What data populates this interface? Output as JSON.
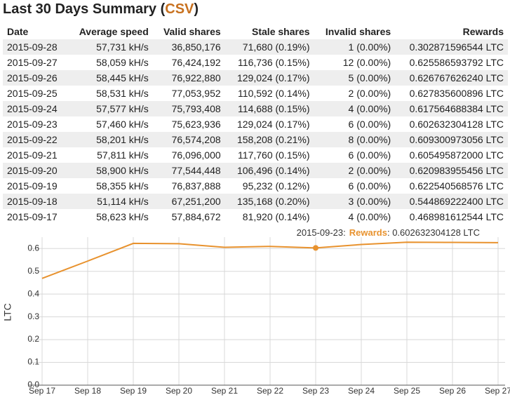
{
  "header": {
    "title": "Last 30 Days Summary",
    "open": "(",
    "link": "CSV",
    "close": ")"
  },
  "table": {
    "columns": [
      "Date",
      "Average speed",
      "Valid shares",
      "Stale shares",
      "Invalid shares",
      "Rewards"
    ],
    "rows": [
      [
        "2015-09-28",
        "57,731 kH/s",
        "36,850,176",
        "71,680 (0.19%)",
        "1 (0.00%)",
        "0.302871596544 LTC"
      ],
      [
        "2015-09-27",
        "58,059 kH/s",
        "76,424,192",
        "116,736 (0.15%)",
        "12 (0.00%)",
        "0.625586593792 LTC"
      ],
      [
        "2015-09-26",
        "58,445 kH/s",
        "76,922,880",
        "129,024 (0.17%)",
        "5 (0.00%)",
        "0.626767626240 LTC"
      ],
      [
        "2015-09-25",
        "58,531 kH/s",
        "77,053,952",
        "110,592 (0.14%)",
        "2 (0.00%)",
        "0.627835600896 LTC"
      ],
      [
        "2015-09-24",
        "57,577 kH/s",
        "75,793,408",
        "114,688 (0.15%)",
        "4 (0.00%)",
        "0.617564688384 LTC"
      ],
      [
        "2015-09-23",
        "57,460 kH/s",
        "75,623,936",
        "129,024 (0.17%)",
        "6 (0.00%)",
        "0.602632304128 LTC"
      ],
      [
        "2015-09-22",
        "58,201 kH/s",
        "76,574,208",
        "158,208 (0.21%)",
        "8 (0.00%)",
        "0.609300973056 LTC"
      ],
      [
        "2015-09-21",
        "57,811 kH/s",
        "76,096,000",
        "117,760 (0.15%)",
        "6 (0.00%)",
        "0.605495872000 LTC"
      ],
      [
        "2015-09-20",
        "58,900 kH/s",
        "77,544,448",
        "106,496 (0.14%)",
        "2 (0.00%)",
        "0.620983955456 LTC"
      ],
      [
        "2015-09-19",
        "58,355 kH/s",
        "76,837,888",
        "95,232 (0.12%)",
        "6 (0.00%)",
        "0.622540568576 LTC"
      ],
      [
        "2015-09-18",
        "51,114 kH/s",
        "67,251,200",
        "135,168 (0.20%)",
        "3 (0.00%)",
        "0.544869222400 LTC"
      ],
      [
        "2015-09-17",
        "58,623 kH/s",
        "57,884,672",
        "81,920 (0.14%)",
        "4 (0.00%)",
        "0.468981612544 LTC"
      ]
    ]
  },
  "chart_data": {
    "type": "line",
    "y_label": "LTC",
    "color": "#e8922e",
    "grid": true,
    "categories": [
      "Sep 17",
      "Sep 18",
      "Sep 19",
      "Sep 20",
      "Sep 21",
      "Sep 22",
      "Sep 23",
      "Sep 24",
      "Sep 25",
      "Sep 26",
      "Sep 27"
    ],
    "values": [
      0.468981612544,
      0.5448692224,
      0.622540568576,
      0.620983955456,
      0.605495872,
      0.609300973056,
      0.602632304128,
      0.617564688384,
      0.627835600896,
      0.62676762624,
      0.625586593792
    ],
    "ylim": [
      0,
      0.65
    ],
    "yticks": [
      {
        "value": 0,
        "label": "0.0"
      },
      0.1,
      0.2,
      0.3,
      0.4,
      0.5,
      0.6
    ],
    "highlight": 6,
    "tooltip": {
      "date": "2015-09-23:",
      "name": "Rewards",
      "value": ": 0.602632304128 LTC"
    }
  }
}
